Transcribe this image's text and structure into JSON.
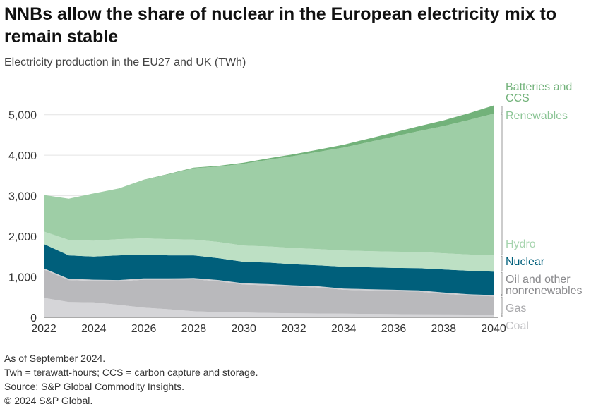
{
  "title": "NNBs allow the share of nuclear in the European electricity mix to remain stable",
  "subtitle": "Electricity production in the EU27 and UK (TWh)",
  "notes": [
    "As of September 2024.",
    "Twh = terawatt-hours; CCS = carbon capture and storage.",
    "Source: S&P Global Commodity Insights.",
    "© 2024 S&P Global."
  ],
  "chart_data": {
    "type": "area",
    "stacked": true,
    "x": [
      2022,
      2023,
      2024,
      2025,
      2026,
      2027,
      2028,
      2029,
      2030,
      2031,
      2032,
      2033,
      2034,
      2035,
      2036,
      2037,
      2038,
      2039,
      2040
    ],
    "xticks": [
      "2022",
      "2024",
      "2026",
      "2028",
      "2030",
      "2032",
      "2034",
      "2036",
      "2038",
      "2040"
    ],
    "yticks": [
      "0",
      "1,000",
      "2,000",
      "3,000",
      "4,000",
      "5,000"
    ],
    "ylim": [
      0,
      5500
    ],
    "grid": "horizontal",
    "legend": "right, at series ends",
    "series": [
      {
        "name": "Coal",
        "color": "#d5d5d8",
        "values": [
          480,
          380,
          370,
          310,
          240,
          200,
          150,
          130,
          120,
          110,
          100,
          95,
          90,
          85,
          80,
          75,
          72,
          70,
          68
        ]
      },
      {
        "name": "Gas",
        "color": "#b9b9bc",
        "values": [
          700,
          540,
          530,
          580,
          690,
          730,
          790,
          760,
          690,
          680,
          660,
          640,
          590,
          580,
          570,
          560,
          510,
          470,
          450
        ]
      },
      {
        "name": "Oil and other nonrenewables",
        "color": "#cfcfd2",
        "values": [
          30,
          30,
          30,
          30,
          30,
          30,
          30,
          30,
          30,
          30,
          30,
          30,
          30,
          30,
          30,
          30,
          30,
          30,
          30
        ]
      },
      {
        "name": "Nuclear",
        "color": "#005f7b",
        "values": [
          600,
          580,
          570,
          610,
          590,
          570,
          560,
          540,
          530,
          530,
          520,
          520,
          540,
          540,
          540,
          550,
          570,
          580,
          580
        ]
      },
      {
        "name": "Hydro",
        "color": "#bde0c4",
        "values": [
          310,
          380,
          390,
          400,
          400,
          400,
          390,
          400,
          400,
          400,
          400,
          400,
          400,
          400,
          400,
          400,
          400,
          400,
          400
        ]
      },
      {
        "name": "Renewables",
        "color": "#9ecea6",
        "values": [
          900,
          1020,
          1170,
          1250,
          1440,
          1600,
          1760,
          1860,
          2020,
          2140,
          2270,
          2400,
          2540,
          2690,
          2840,
          2980,
          3140,
          3320,
          3500
        ]
      },
      {
        "name": "Batteries and CCS",
        "color": "#72b27a",
        "values": [
          0,
          0,
          0,
          0,
          5,
          10,
          15,
          20,
          25,
          35,
          45,
          55,
          70,
          85,
          100,
          120,
          140,
          165,
          200
        ]
      }
    ]
  }
}
